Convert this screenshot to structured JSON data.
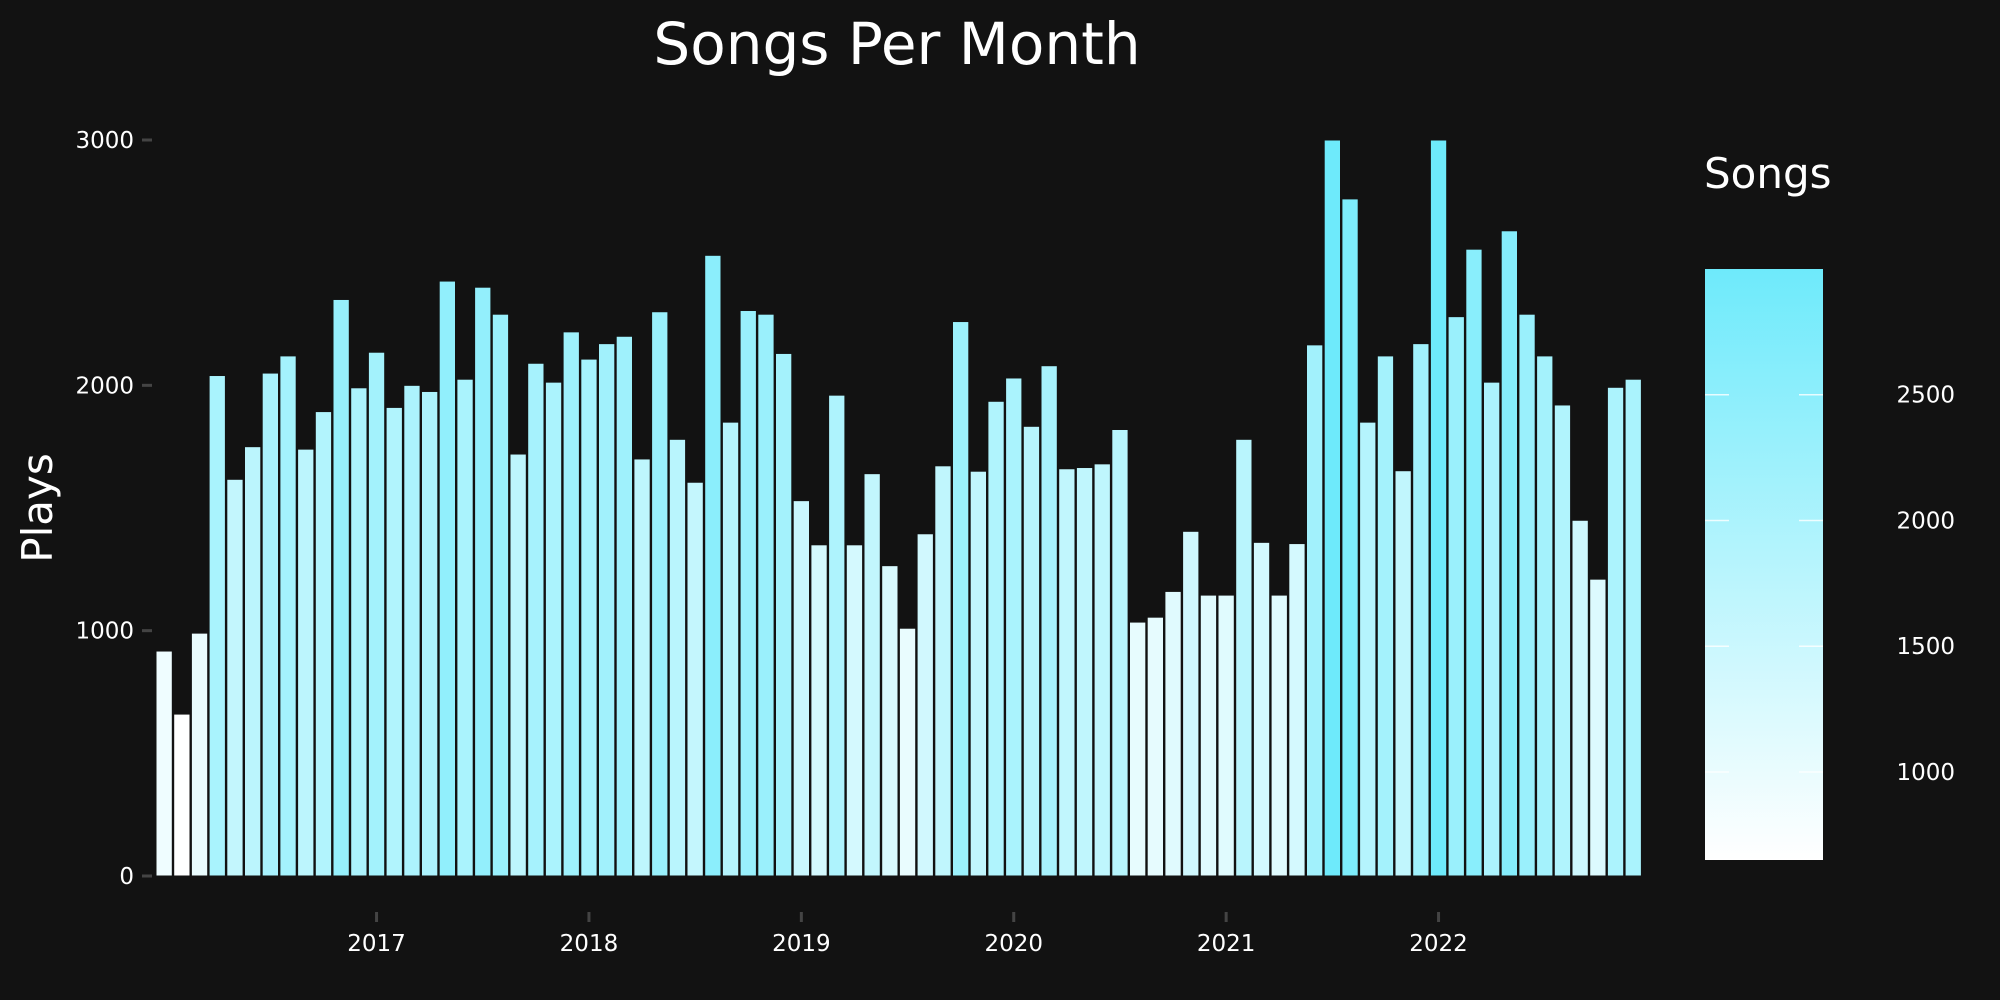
{
  "chart_data": {
    "type": "bar",
    "title": "Songs Per Month",
    "xlabel": "",
    "ylabel": "Plays",
    "ylim": [
      0,
      3000
    ],
    "yticks": [
      0,
      1000,
      2000,
      3000
    ],
    "xticks": [
      "2017",
      "2018",
      "2019",
      "2020",
      "2021",
      "2022"
    ],
    "x_start": "2016-01",
    "x_end": "2022-12",
    "values": [
      917,
      660,
      990,
      2040,
      1617,
      1750,
      2050,
      2120,
      1740,
      1893,
      2350,
      1990,
      2135,
      1910,
      2000,
      1975,
      2425,
      2025,
      2400,
      2290,
      1720,
      2090,
      2013,
      2218,
      2107,
      2170,
      2200,
      1700,
      2300,
      1780,
      1605,
      2530,
      1850,
      2305,
      2290,
      2130,
      1530,
      1350,
      1960,
      1350,
      1640,
      1265,
      1010,
      1395,
      1672,
      2260,
      1650,
      1935,
      2030,
      1833,
      2080,
      1660,
      1665,
      1680,
      1820,
      1035,
      1055,
      1160,
      1405,
      1145,
      1145,
      1780,
      1360,
      1145,
      1355,
      2165,
      3000,
      2760,
      1850,
      2120,
      1652,
      2170,
      3000,
      2280,
      2555,
      2013,
      2630,
      2290,
      2120,
      1920,
      1450,
      1210,
      1992,
      2025
    ],
    "colorbar": {
      "title": "Songs",
      "ticks": [
        1000,
        1500,
        2000,
        2500
      ],
      "range": [
        650,
        3000
      ],
      "color_low": "#ffffff",
      "color_high": "#6eeafb"
    },
    "colors": {
      "background": "#121212",
      "text": "#ffffff",
      "tick_mark": "#444444",
      "bar_outline": "#121212"
    }
  }
}
